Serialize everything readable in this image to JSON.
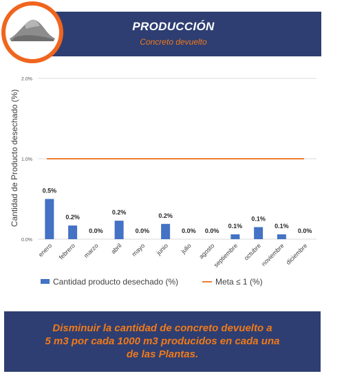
{
  "header": {
    "title": "PRODUCCIÓN",
    "subtitle": "Concreto devuelto",
    "logo_icon": "concrete-pile-icon"
  },
  "chart_data": {
    "type": "bar",
    "categories": [
      "enero",
      "febrero",
      "marzo",
      "abril",
      "mayo",
      "junio",
      "julio",
      "agosto",
      "septiembre",
      "octubre",
      "noviembre",
      "diciembre"
    ],
    "series": [
      {
        "name": "Cantidad producto desechado (%)",
        "values": [
          0.5,
          0.17,
          0.0,
          0.23,
          0.0,
          0.19,
          0.0,
          0.0,
          0.06,
          0.15,
          0.06,
          0.0
        ],
        "labels": [
          "0.5%",
          "0.2%",
          "0.0%",
          "0.2%",
          "0.0%",
          "0.2%",
          "0.0%",
          "0.0%",
          "0.1%",
          "0.1%",
          "0.1%",
          "0.0%"
        ],
        "color": "#4472c4"
      },
      {
        "name": "Meta ≤ 1 (%)",
        "type": "line",
        "value": 1.0,
        "color": "#ed7d31"
      }
    ],
    "ylabel": "Cantidad de Producto desechado (%)",
    "ylim": [
      0,
      2
    ],
    "yticks": [
      0,
      1,
      2
    ],
    "ytick_labels": [
      "0.0%",
      "1.0%",
      "2.0%"
    ],
    "grid": true,
    "legend": "bottom"
  },
  "footer": {
    "lines": [
      "Disminuir la cantidad de concreto devuelto a",
      "5 m3 por cada 1000 m3  producidos  en cada una",
      "de  las Plantas."
    ]
  }
}
